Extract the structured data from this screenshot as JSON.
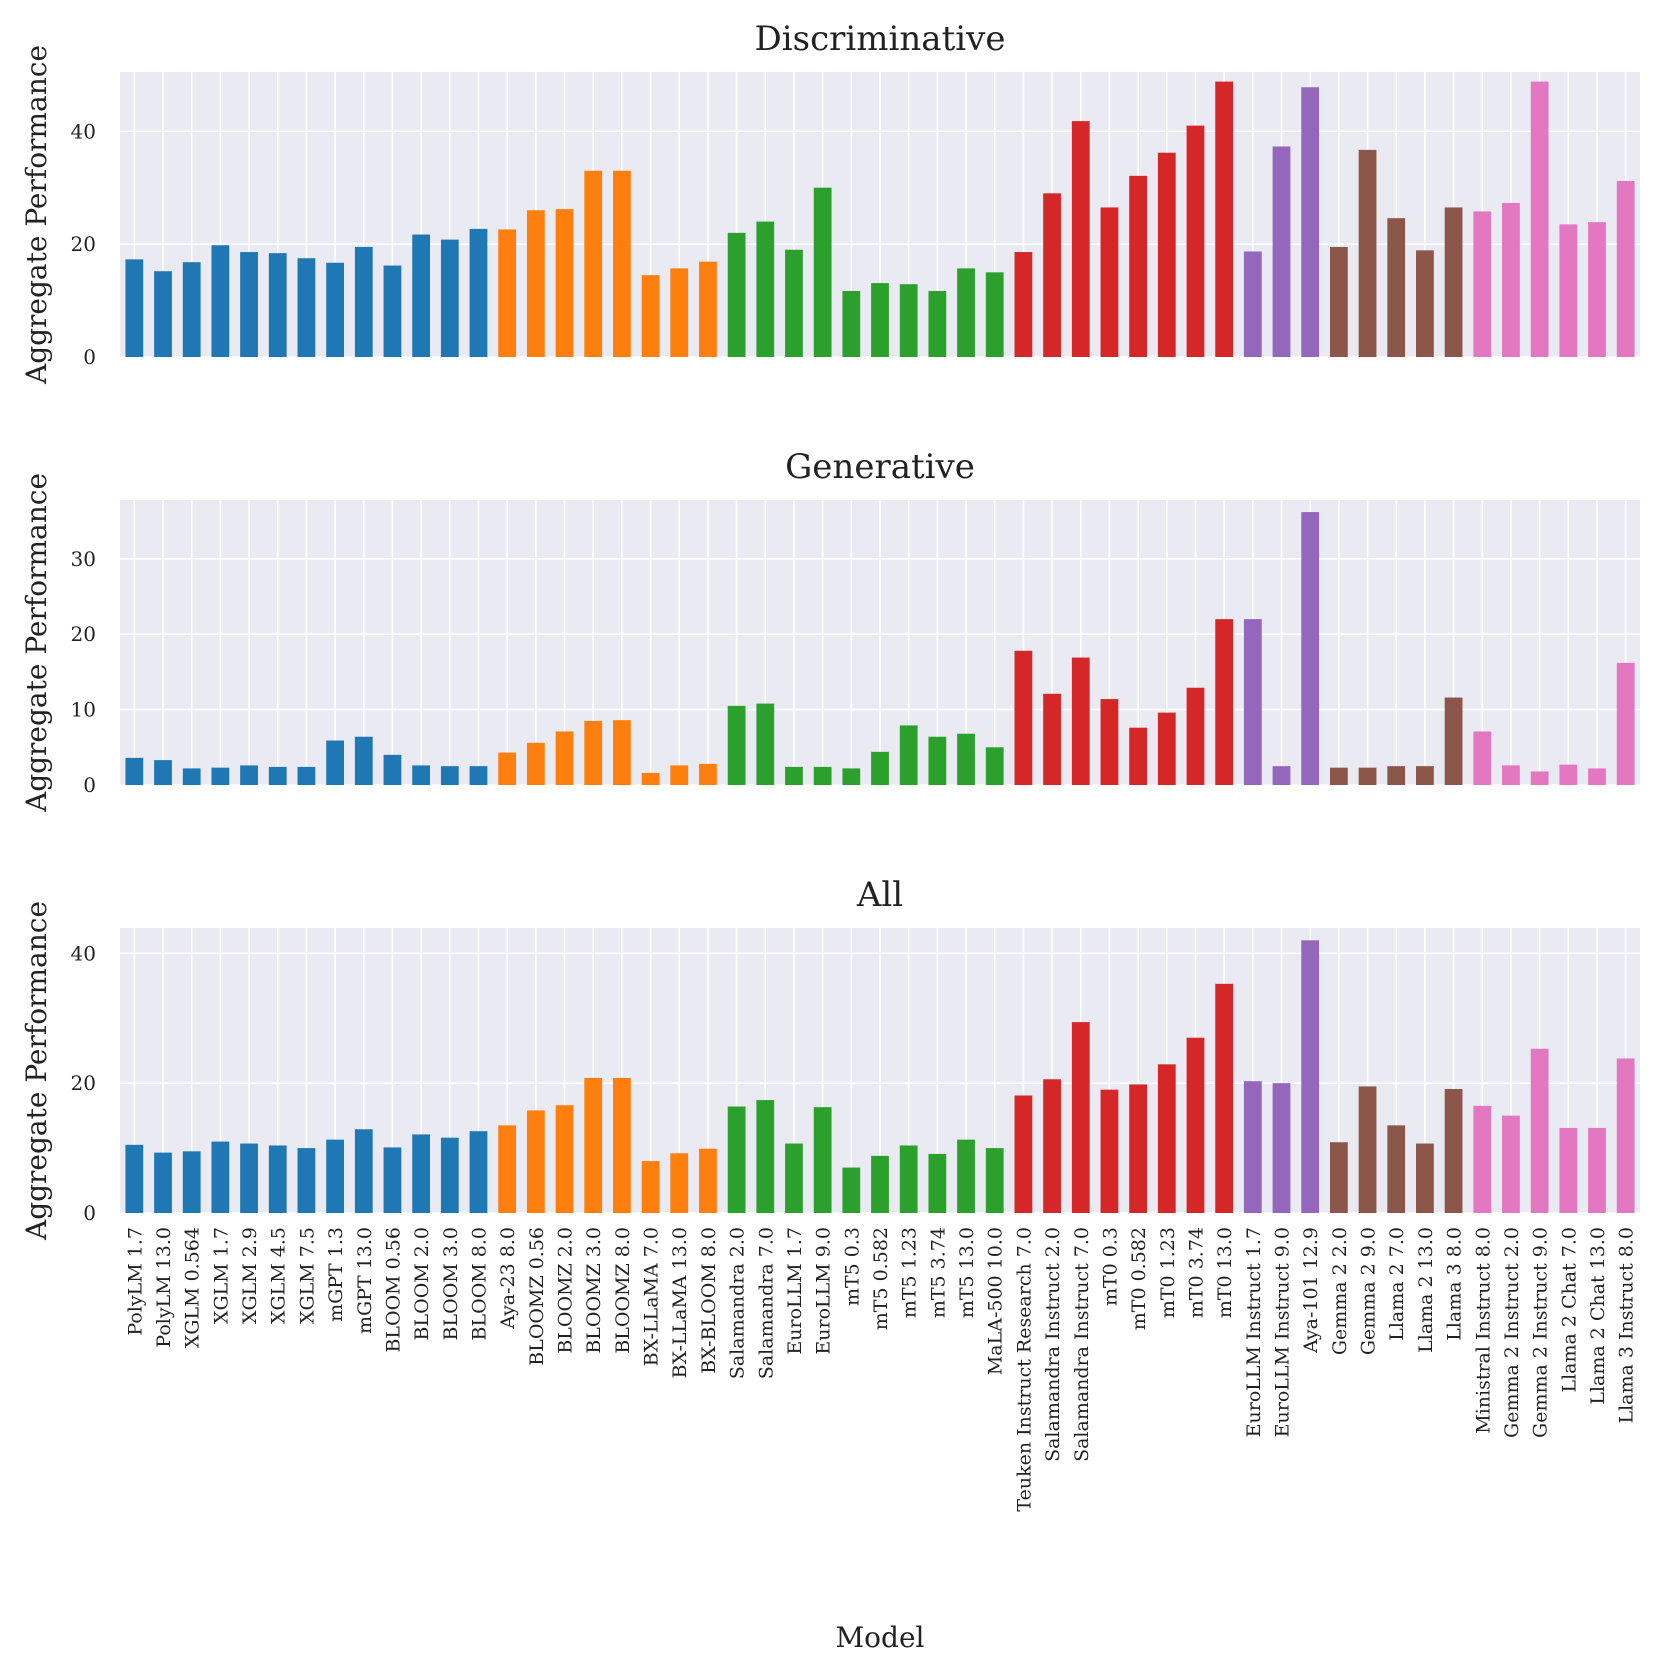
{
  "chart_data": {
    "type": "bar",
    "xlabel": "Model",
    "ylabel": "Aggregate Performance",
    "categories": [
      "PolyLM 1.7",
      "PolyLM 13.0",
      "XGLM 0.564",
      "XGLM 1.7",
      "XGLM 2.9",
      "XGLM 4.5",
      "XGLM 7.5",
      "mGPT 1.3",
      "mGPT 13.0",
      "BLOOM 0.56",
      "BLOOM 2.0",
      "BLOOM 3.0",
      "BLOOM 8.0",
      "Aya-23 8.0",
      "BLOOMZ 0.56",
      "BLOOMZ 2.0",
      "BLOOMZ 3.0",
      "BLOOMZ 8.0",
      "BX-LLaMA 7.0",
      "BX-LLaMA 13.0",
      "BX-BLOOM 8.0",
      "Salamandra 2.0",
      "Salamandra 7.0",
      "EuroLLM 1.7",
      "EuroLLM 9.0",
      "mT5 0.3",
      "mT5 0.582",
      "mT5 1.23",
      "mT5 3.74",
      "mT5 13.0",
      "MaLA-500 10.0",
      "Teuken Instruct Research 7.0",
      "Salamandra Instruct 2.0",
      "Salamandra Instruct 7.0",
      "mT0 0.3",
      "mT0 0.582",
      "mT0 1.23",
      "mT0 3.74",
      "mT0 13.0",
      "EuroLLM Instruct 1.7",
      "EuroLLM Instruct 9.0",
      "Aya-101 12.9",
      "Gemma 2 2.0",
      "Gemma 2 9.0",
      "Llama 2 7.0",
      "Llama 2 13.0",
      "Llama 3 8.0",
      "Ministral Instruct 8.0",
      "Gemma 2 Instruct 2.0",
      "Gemma 2 Instruct 9.0",
      "Llama 2 Chat 7.0",
      "Llama 2 Chat 13.0",
      "Llama 3 Instruct 8.0"
    ],
    "groups": [
      0,
      0,
      0,
      0,
      0,
      0,
      0,
      0,
      0,
      0,
      0,
      0,
      0,
      1,
      1,
      1,
      1,
      1,
      1,
      1,
      1,
      2,
      2,
      2,
      2,
      2,
      2,
      2,
      2,
      2,
      2,
      3,
      3,
      3,
      3,
      3,
      3,
      3,
      3,
      4,
      4,
      4,
      5,
      5,
      5,
      5,
      5,
      6,
      6,
      6,
      6,
      6,
      6
    ],
    "group_colors": [
      "#1f77b4",
      "#ff7f0e",
      "#2ca02c",
      "#d62728",
      "#9467bd",
      "#8c564b",
      "#e377c2"
    ],
    "subplots": [
      {
        "title": "Discriminative",
        "ylim": [
          0,
          50.5
        ],
        "yticks": [
          0,
          20,
          40
        ],
        "values": [
          17.3,
          15.2,
          16.8,
          19.8,
          18.6,
          18.4,
          17.5,
          16.7,
          19.5,
          16.2,
          21.7,
          20.8,
          22.7,
          22.6,
          26.0,
          26.2,
          33.0,
          33.0,
          14.5,
          15.7,
          16.9,
          22.0,
          24.0,
          19.0,
          30.0,
          11.7,
          13.1,
          12.9,
          11.7,
          15.7,
          15.0,
          18.6,
          29.0,
          41.8,
          26.5,
          32.1,
          36.2,
          41.0,
          48.8,
          18.7,
          37.3,
          47.8,
          19.5,
          36.7,
          24.6,
          18.9,
          26.5,
          25.8,
          27.3,
          48.8,
          23.5,
          23.9,
          31.2
        ]
      },
      {
        "title": "Generative",
        "ylim": [
          0,
          37.8
        ],
        "yticks": [
          0,
          10,
          20,
          30
        ],
        "values": [
          3.6,
          3.3,
          2.2,
          2.3,
          2.6,
          2.4,
          2.4,
          5.9,
          6.4,
          4.0,
          2.6,
          2.5,
          2.5,
          4.3,
          5.6,
          7.1,
          8.5,
          8.6,
          1.6,
          2.6,
          2.8,
          10.5,
          10.8,
          2.4,
          2.4,
          2.2,
          4.4,
          7.9,
          6.4,
          6.8,
          5.0,
          17.8,
          12.1,
          16.9,
          11.4,
          7.6,
          9.6,
          12.9,
          22.0,
          22.0,
          2.5,
          36.2,
          2.3,
          2.3,
          2.5,
          2.5,
          11.6,
          7.1,
          2.6,
          1.8,
          2.7,
          2.2,
          16.2
        ]
      },
      {
        "title": "All",
        "ylim": [
          0,
          43.9
        ],
        "yticks": [
          0,
          20,
          40
        ],
        "values": [
          10.5,
          9.3,
          9.5,
          11.0,
          10.7,
          10.4,
          10.0,
          11.3,
          12.9,
          10.1,
          12.1,
          11.6,
          12.6,
          13.5,
          15.8,
          16.6,
          20.8,
          20.8,
          8.0,
          9.2,
          9.9,
          16.4,
          17.4,
          10.7,
          16.3,
          7.0,
          8.8,
          10.4,
          9.1,
          11.3,
          10.0,
          18.1,
          20.6,
          29.4,
          19.0,
          19.8,
          22.9,
          27.0,
          35.3,
          20.3,
          20.0,
          42.0,
          10.9,
          19.5,
          13.5,
          10.7,
          19.1,
          16.5,
          15.0,
          25.3,
          13.1,
          13.1,
          23.8
        ]
      }
    ]
  }
}
